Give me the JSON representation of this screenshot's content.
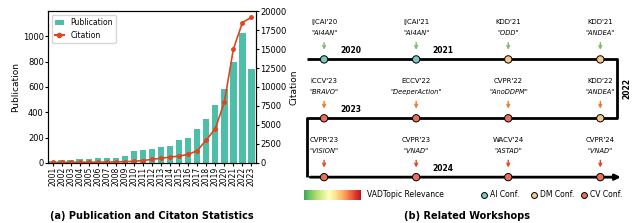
{
  "chart_data": [
    {
      "type": "bar",
      "title": "(a) Publication and Citaton Statistics",
      "categories": [
        "2001",
        "2002",
        "2003",
        "2004",
        "2005",
        "2006",
        "2007",
        "2008",
        "2009",
        "2010",
        "2011",
        "2012",
        "2013",
        "2014",
        "2015",
        "2016",
        "2017",
        "2018",
        "2019",
        "2020",
        "2021",
        "2022",
        "2023"
      ],
      "series": [
        {
          "name": "Publication",
          "type": "bar",
          "color": "#4DBFA8",
          "values": [
            15,
            22,
            25,
            30,
            32,
            35,
            40,
            35,
            55,
            90,
            105,
            110,
            125,
            135,
            180,
            200,
            270,
            350,
            460,
            580,
            800,
            1030,
            740
          ]
        },
        {
          "name": "Citation",
          "type": "line",
          "axis": "y2",
          "color": "#E04520",
          "marker": "o",
          "values": [
            50,
            55,
            60,
            70,
            80,
            90,
            100,
            120,
            150,
            200,
            300,
            450,
            600,
            750,
            900,
            1100,
            1600,
            3000,
            4500,
            8000,
            15000,
            18500,
            19200
          ]
        }
      ],
      "y_label": "Publication",
      "y2_label": "Citation",
      "ylim": [
        0,
        1200
      ],
      "yticks": [
        0,
        200,
        400,
        600,
        800,
        1000
      ],
      "y2lim": [
        0,
        20000
      ],
      "y2ticks": [
        0,
        2500,
        5000,
        7500,
        10000,
        12500,
        15000,
        17500,
        20000
      ],
      "legend": "upper left"
    },
    {
      "type": "timeline",
      "title": "(b) Related Workshops",
      "rows": [
        {
          "arrow_color": "#7DB870",
          "years": [
            {
              "label": "2020",
              "slot": 0
            },
            {
              "label": "2021",
              "slot": 1
            }
          ],
          "workshops": [
            {
              "conf": "IJCAI'20",
              "name": "\"AI4AN\"",
              "venue_type": "AI Conf."
            },
            {
              "conf": "IJCAI'21",
              "name": "\"AI4AN\"",
              "venue_type": "AI Conf."
            },
            {
              "conf": "KDD'21",
              "name": "\"ODD\"",
              "venue_type": "DM Conf."
            },
            {
              "conf": "KDD'21",
              "name": "\"ANDEA\"",
              "venue_type": "DM Conf."
            }
          ]
        },
        {
          "arrow_color": "#E87A30",
          "years": [
            {
              "label": "2023",
              "slot": 0
            }
          ],
          "workshops": [
            {
              "conf": "ICCV'23",
              "name": "\"BRAVO\"",
              "venue_type": "CV Conf."
            },
            {
              "conf": "ECCV'22",
              "name": "\"DeeperAction\"",
              "venue_type": "CV Conf."
            },
            {
              "conf": "CVPR'22",
              "name": "\"AnoDDPM\"",
              "venue_type": "CV Conf."
            },
            {
              "conf": "KDD'22",
              "name": "\"ANDEA\"",
              "venue_type": "DM Conf."
            }
          ]
        },
        {
          "arrow_color": "#E04520",
          "years": [
            {
              "label": "2024",
              "slot": 1
            }
          ],
          "workshops": [
            {
              "conf": "CVPR'23",
              "name": "\"VISION\"",
              "venue_type": "CV Conf."
            },
            {
              "conf": "CVPR'23",
              "name": "\"VNAD\"",
              "venue_type": "CV Conf."
            },
            {
              "conf": "WACV'24",
              "name": "\"ASTAD\"",
              "venue_type": "CV Conf."
            },
            {
              "conf": "CVPR'24",
              "name": "\"VNAD\"",
              "venue_type": "CV Conf."
            }
          ]
        }
      ],
      "turn_label": "2022",
      "gradient_label": "VADTopic Relevance",
      "venue_types": [
        {
          "label": "AI Conf.",
          "color": "#7BC8C0"
        },
        {
          "label": "DM Conf.",
          "color": "#F5C98A"
        },
        {
          "label": "CV Conf.",
          "color": "#E8705A"
        }
      ]
    }
  ]
}
